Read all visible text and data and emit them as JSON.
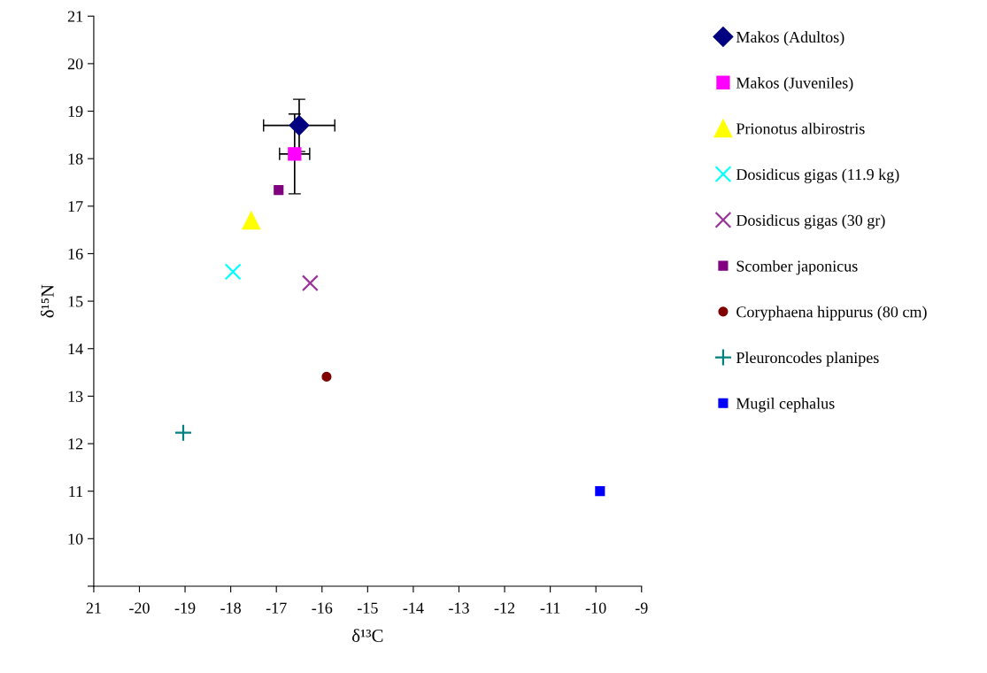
{
  "chart_data": {
    "type": "scatter",
    "xlabel": "δ¹³C",
    "ylabel": "δ¹⁵N",
    "xlim": [
      -21,
      -9
    ],
    "xticks": [
      {
        "value": -21,
        "label": "21"
      },
      -20,
      -19,
      -18,
      -17,
      -16,
      -15,
      -14,
      -13,
      -12,
      -11,
      -10,
      -9
    ],
    "ylim": [
      9,
      21
    ],
    "yticks": [
      {
        "value": 9,
        "label": null
      },
      10,
      11,
      12,
      13,
      14,
      15,
      16,
      17,
      18,
      19,
      20,
      21
    ],
    "grid": false,
    "legend": "right",
    "series": [
      {
        "name": "Makos (Adultos)",
        "color": "#000080",
        "marker": "diamond",
        "x": [
          -16.5
        ],
        "values": [
          18.7
        ],
        "errors": [
          0.55
        ],
        "xerrors": [
          0.78
        ]
      },
      {
        "name": "Makos (Juveniles)",
        "color": "#ff00ff",
        "marker": "square",
        "x": [
          -16.6
        ],
        "values": [
          18.1
        ],
        "errors": [
          0.84
        ],
        "xerrors": [
          0.33
        ]
      },
      {
        "name": "Prionotus albirostris",
        "color": "#ffff00",
        "marker": "triangle",
        "x": [
          -17.55
        ],
        "values": [
          16.7
        ]
      },
      {
        "name": "Dosidicus gigas (11.9 kg)",
        "color": "#00ffff",
        "marker": "cross",
        "x": [
          -17.95
        ],
        "values": [
          15.62
        ]
      },
      {
        "name": "Dosidicus gigas (30 gr)",
        "color": "#993399",
        "marker": "cross",
        "x": [
          -16.26
        ],
        "values": [
          15.38
        ]
      },
      {
        "name": "Scomber japonicus",
        "color": "#800080",
        "marker": "square",
        "x": [
          -16.95
        ],
        "values": [
          17.34
        ]
      },
      {
        "name": "Coryphaena hippurus (80 cm)",
        "color": "#800000",
        "marker": "circle",
        "x": [
          -15.9
        ],
        "values": [
          13.41
        ]
      },
      {
        "name": "Pleuroncodes planipes",
        "color": "#008080",
        "marker": "plus",
        "x": [
          -19.04
        ],
        "values": [
          12.23
        ]
      },
      {
        "name": "Mugil cephalus",
        "color": "#0000ff",
        "marker": "square",
        "x": [
          -9.91
        ],
        "values": [
          11.0
        ]
      }
    ]
  }
}
